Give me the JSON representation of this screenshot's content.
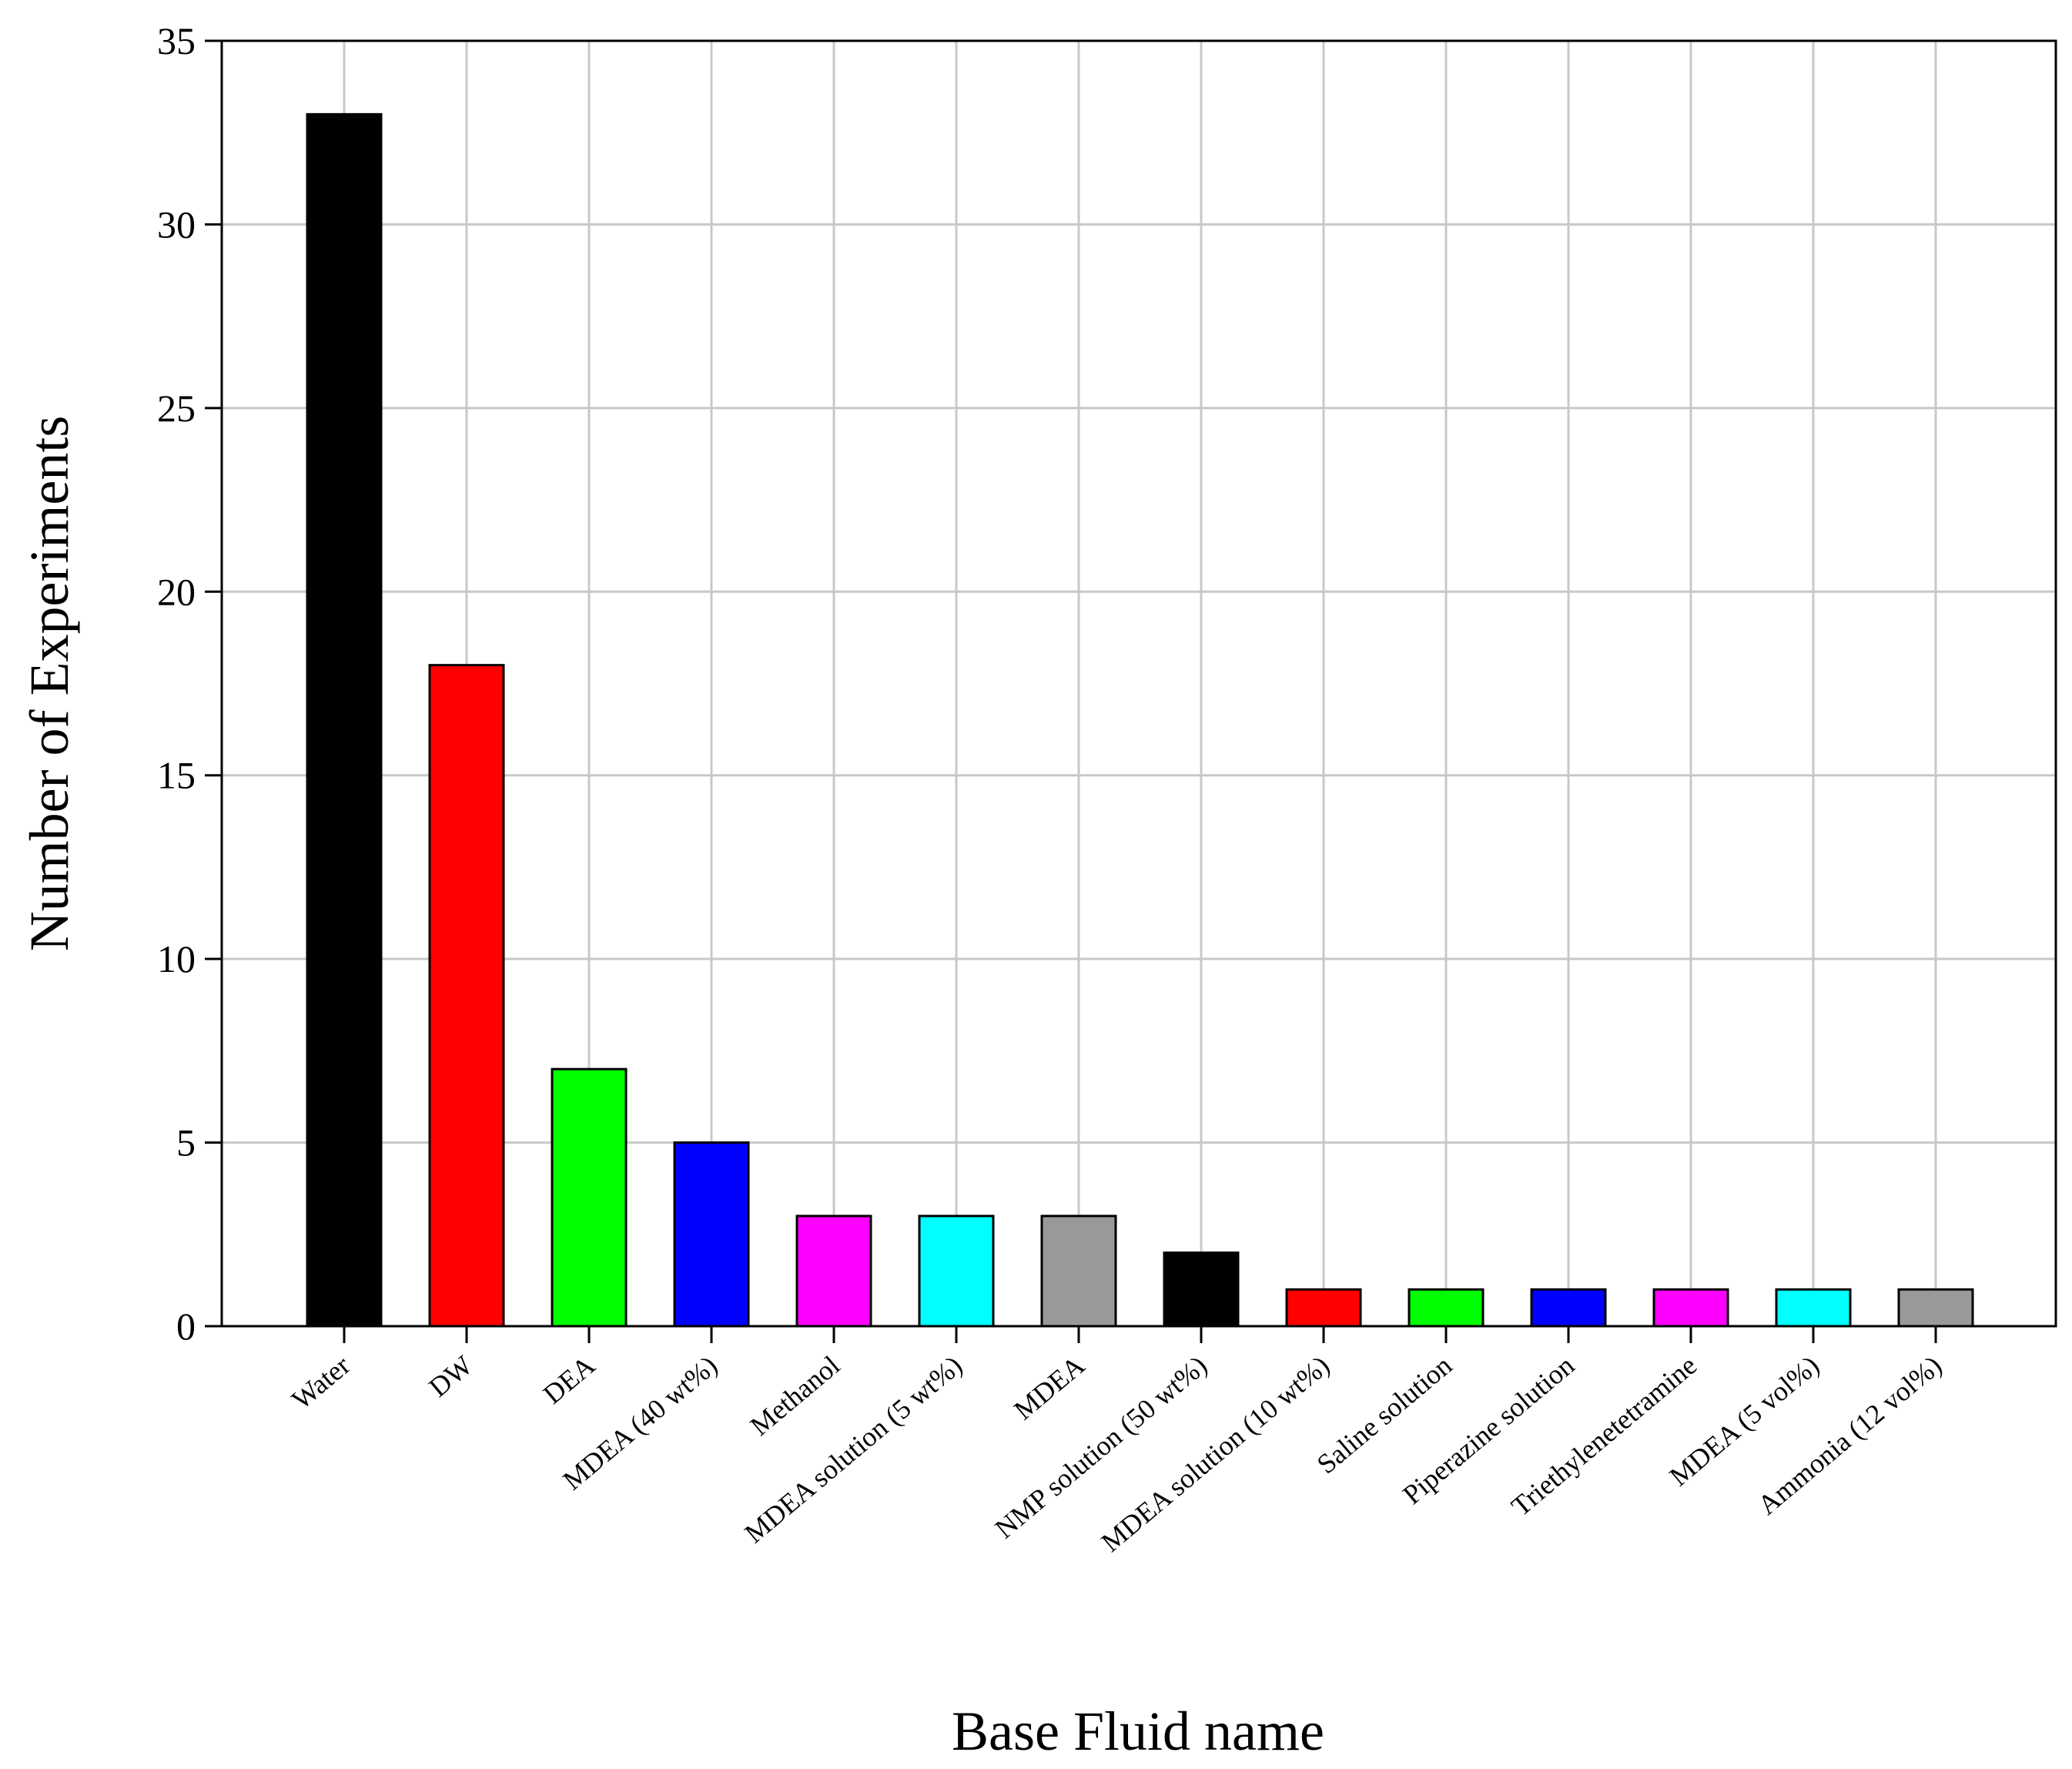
{
  "chart_data": {
    "type": "bar",
    "title": "",
    "xlabel": "Base Fluid name",
    "ylabel": "Number of Experiments",
    "ylim": [
      0,
      35
    ],
    "yticks": [
      0,
      5,
      10,
      15,
      20,
      25,
      30,
      35
    ],
    "grid": true,
    "legend": "none",
    "categories": [
      "Water",
      "DW",
      "DEA",
      "MDEA (40 wt%)",
      "Methanol",
      "MDEA solution (5 wt%)",
      "MDEA",
      "NMP solution (50 wt%)",
      "MDEA solution (10 wt%)",
      "Saline solution",
      "Piperazine solution",
      "Triethylenetetramine",
      "MDEA (5 vol%)",
      "Ammonia (12 vol%)"
    ],
    "values": [
      33,
      18,
      7,
      5,
      3,
      3,
      3,
      2,
      1,
      1,
      1,
      1,
      1,
      1
    ],
    "colors": [
      "#000000",
      "#ff0000",
      "#00ff00",
      "#0000ff",
      "#ff00ff",
      "#00ffff",
      "#999999",
      "#000000",
      "#ff0000",
      "#00ff00",
      "#0000ff",
      "#ff00ff",
      "#00ffff",
      "#999999"
    ],
    "grid_color": "#c8c8c8"
  }
}
